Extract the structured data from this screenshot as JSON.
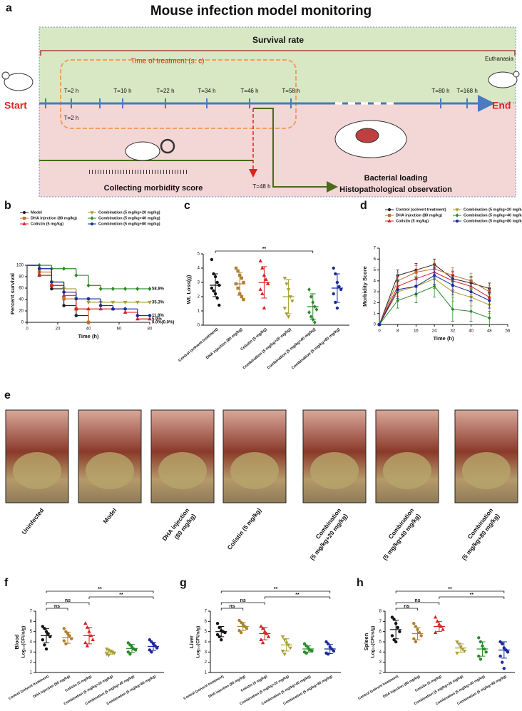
{
  "panel_labels": [
    "a",
    "b",
    "c",
    "d",
    "e",
    "f",
    "g",
    "h"
  ],
  "diagram": {
    "title": "Mouse infection model monitoring",
    "survival_rate": "Survival rate",
    "treatment": "Time of treatment (s. c)",
    "timepoints": [
      "T=2 h",
      "T=10 h",
      "T=22 h",
      "T=34 h",
      "T=46 h",
      "T=58 h",
      "T=80 h",
      "T=168 h"
    ],
    "timepoint_lower": "T=2 h",
    "sampling": "T=48 h",
    "start": "Start",
    "end": "End",
    "euthanasia": "Euthanasia",
    "morbidity": "Collecting morbidity score",
    "loading": "Bacterial loading",
    "histology": "Histopathological observation"
  },
  "photos": {
    "labels": [
      [
        "Uninfected"
      ],
      [
        "Model"
      ],
      [
        "DHA injection",
        "(80 mg/kg)"
      ],
      [
        "Colistin (5 mg/kg)"
      ],
      [
        "Combination",
        "(5 mg/kg+20 mg/kg)"
      ],
      [
        "Combination",
        "(5 mg/kg+40 mg/kg)"
      ],
      [
        "Combination",
        "(5 mg/kg+80 mg/kg)"
      ]
    ]
  },
  "chart_data": [
    {
      "type": "line",
      "step": true,
      "xlabel": "Time (h)",
      "ylabel": "Percent survival",
      "x": [
        0,
        8,
        16,
        24,
        32,
        40,
        48,
        56,
        64,
        72,
        80
      ],
      "xlim": [
        0,
        80
      ],
      "xticks": [
        0,
        20,
        40,
        60,
        80
      ],
      "ylim": [
        0,
        100
      ],
      "yticks": [
        0,
        20,
        40,
        60,
        80,
        100
      ],
      "series": [
        {
          "name": "Model",
          "color": "#222222",
          "marker": "circle",
          "values": [
            100,
            82.4,
            58.8,
            29.4,
            11.8,
            0,
            null,
            null,
            null,
            null,
            null
          ]
        },
        {
          "name": "DHA injection (80 mg/kg)",
          "color": "#c0702a",
          "marker": "square",
          "values": [
            100,
            88.2,
            64.7,
            41.2,
            23.5,
            0,
            null,
            null,
            null,
            null,
            null
          ]
        },
        {
          "name": "Colistin (5 mg/kg)",
          "color": "#d42020",
          "marker": "triangle",
          "values": [
            100,
            82.4,
            64.7,
            47.1,
            23.5,
            23.5,
            23.5,
            23.5,
            17.6,
            5.9,
            5.9
          ]
        },
        {
          "name": "Combination (5 mg/kg+20 mg/kg)",
          "color": "#a6a030",
          "marker": "triangle-down",
          "values": [
            100,
            94.1,
            70.6,
            58.8,
            41.2,
            35.3,
            35.3,
            35.3,
            35.3,
            35.3,
            35.3
          ]
        },
        {
          "name": "Combination (5 mg/kg+40 mg/kg)",
          "color": "#2a8a2a",
          "marker": "diamond",
          "values": [
            100,
            100,
            94.1,
            94.1,
            82.4,
            64.7,
            58.8,
            58.8,
            58.8,
            58.8,
            58.8
          ]
        },
        {
          "name": "Combination (5 mg/kg+80 mg/kg)",
          "color": "#1a2a9a",
          "marker": "circle",
          "values": [
            100,
            94.1,
            70.6,
            52.9,
            41.2,
            41.2,
            29.4,
            23.5,
            23.5,
            11.8,
            11.8
          ]
        }
      ],
      "annotations": [
        {
          "text": "58.8%",
          "value": 58.8
        },
        {
          "text": "35.3%",
          "value": 35.3
        },
        {
          "text": "11.8%",
          "value": 11.8
        },
        {
          "text": "5.9%",
          "value": 5.9
        },
        {
          "text": "0.0%(0.0%)",
          "value": 0
        }
      ]
    },
    {
      "type": "dotplot",
      "ylabel": "Wt. Loss(g)",
      "ylim": [
        0,
        5
      ],
      "yticks": [
        0,
        1,
        2,
        3,
        4,
        5
      ],
      "categories": [
        "Control (solvent treatment)",
        "DHA injection (80 mg/kg)",
        "Colistin (5 mg/kg)",
        "Combination (5 mg/kg+20 mg/kg)",
        "Combination (5 mg/kg+40 mg/kg)",
        "Combination (5 mg/kg+80 mg/kg)"
      ],
      "colors": [
        "#111111",
        "#b08030",
        "#d42020",
        "#a6a030",
        "#2a8a2a",
        "#1a2a9a"
      ],
      "markers": [
        "circle",
        "square",
        "triangle",
        "triangle-down",
        "diamond",
        "circle"
      ],
      "points": [
        [
          4.6,
          3.6,
          3.4,
          3.0,
          2.8,
          2.6,
          2.4,
          2.2,
          1.9,
          1.4
        ],
        [
          4.0,
          3.8,
          3.5,
          3.3,
          3.0,
          2.9,
          2.6,
          2.2,
          2.0,
          1.8
        ],
        [
          4.5,
          4.0,
          3.5,
          3.2,
          2.9,
          2.5,
          2.2,
          1.2
        ],
        [
          3.3,
          2.9,
          2.5,
          2.0,
          1.7,
          1.2,
          0.8,
          0.6
        ],
        [
          2.5,
          2.0,
          1.6,
          1.3,
          1.1,
          0.9,
          0.6,
          0.4,
          0.2
        ],
        [
          4.0,
          3.6,
          3.0,
          2.7,
          2.5,
          2.2,
          1.6,
          1.2
        ]
      ],
      "means": [
        2.8,
        2.9,
        3.0,
        2.0,
        1.3,
        2.6
      ],
      "sd": [
        0.8,
        0.8,
        1.1,
        1.2,
        0.9,
        1.0
      ],
      "brackets": [
        {
          "label": "**",
          "between": [
            0,
            4
          ]
        }
      ]
    },
    {
      "type": "line",
      "xlabel": "Time (h)",
      "ylabel": "Morbidity Score",
      "x": [
        0,
        8,
        16,
        24,
        32,
        40,
        48
      ],
      "xlim": [
        0,
        56
      ],
      "xticks": [
        0,
        8,
        16,
        24,
        32,
        40,
        48,
        56
      ],
      "ylim": [
        0,
        7
      ],
      "yticks": [
        0,
        1,
        2,
        3,
        4,
        5,
        6,
        7
      ],
      "series": [
        {
          "name": "Control (solvent treatment)",
          "color": "#222222",
          "marker": "circle",
          "values": [
            0,
            4.5,
            5.0,
            5.5,
            4.2,
            3.8,
            3.3
          ],
          "errors": [
            0,
            0.5,
            0.6,
            0.5,
            0.7,
            0.6,
            0.5
          ]
        },
        {
          "name": "DHA injection (80 mg/kg)",
          "color": "#c0702a",
          "marker": "square",
          "values": [
            0,
            4.0,
            4.8,
            5.1,
            4.5,
            4.0,
            3.0
          ],
          "errors": [
            0,
            0.8,
            0.6,
            0.6,
            0.7,
            0.7,
            0.6
          ]
        },
        {
          "name": "Colistin (5 mg/kg)",
          "color": "#d42020",
          "marker": "triangle",
          "values": [
            0,
            3.5,
            4.2,
            4.8,
            4.0,
            3.5,
            2.5
          ],
          "errors": [
            0,
            0.9,
            0.8,
            0.7,
            0.8,
            0.8,
            0.7
          ]
        },
        {
          "name": "Combination (5 mg/kg+20 mg/kg)",
          "color": "#a6a030",
          "marker": "triangle-down",
          "values": [
            0,
            3.0,
            3.5,
            4.2,
            3.0,
            2.5,
            1.8
          ],
          "errors": [
            0,
            0.9,
            0.9,
            0.9,
            0.9,
            0.8,
            0.8
          ]
        },
        {
          "name": "Combination (5 mg/kg+40 mg/kg)",
          "color": "#2a8a2a",
          "marker": "diamond",
          "values": [
            0,
            2.2,
            2.8,
            3.5,
            1.4,
            1.2,
            0.6
          ],
          "errors": [
            0,
            0.7,
            0.8,
            1.0,
            1.1,
            0.9,
            0.6
          ]
        },
        {
          "name": "Combination (5 mg/kg+80 mg/kg)",
          "color": "#1a2a9a",
          "marker": "circle",
          "values": [
            0,
            3.2,
            3.5,
            4.5,
            3.6,
            3.0,
            2.2
          ],
          "errors": [
            0,
            0.8,
            0.8,
            0.8,
            0.9,
            0.8,
            0.7
          ]
        }
      ]
    },
    {
      "type": "dotplot",
      "ylabel": "Blood",
      "ylabel2": "Log₁₀(CFUs/g)",
      "ylim": [
        1,
        7
      ],
      "yticks": [
        1,
        2,
        3,
        4,
        5,
        6,
        7
      ],
      "categories": [
        "Control (solvent treatment)",
        "DHA injection (80 mg/kg)",
        "Colistin (5 mg/kg)",
        "Combination (5 mg/kg+20 mg/kg)",
        "Combination (5 mg/kg+40 mg/kg)",
        "Combination (5 mg/kg+80 mg/kg)"
      ],
      "colors": [
        "#111111",
        "#b08030",
        "#d42020",
        "#a6a030",
        "#2a8a2a",
        "#1a2a9a"
      ],
      "markers": [
        "circle",
        "circle",
        "triangle",
        "triangle-down",
        "circle",
        "circle"
      ],
      "points": [
        [
          5.5,
          5.3,
          5.0,
          4.8,
          4.5,
          4.2,
          3.7,
          3.3
        ],
        [
          5.3,
          5.0,
          4.8,
          4.6,
          4.3,
          4.1,
          3.8
        ],
        [
          5.8,
          5.4,
          5.0,
          4.6,
          4.2,
          3.9,
          3.6
        ],
        [
          3.3,
          3.2,
          3.1,
          3.0,
          2.9,
          2.8,
          2.7
        ],
        [
          3.9,
          3.7,
          3.5,
          3.3,
          3.2,
          3.0,
          2.8
        ],
        [
          4.2,
          4.0,
          3.8,
          3.6,
          3.4,
          3.2,
          3.0
        ]
      ],
      "means": [
        4.6,
        4.4,
        4.6,
        3.0,
        3.35,
        3.55
      ],
      "sd": [
        0.7,
        0.55,
        0.8,
        0.2,
        0.4,
        0.4
      ],
      "brackets": [
        {
          "label": "ns",
          "between": [
            0,
            1
          ]
        },
        {
          "label": "ns",
          "between": [
            0,
            2
          ]
        },
        {
          "label": "**",
          "between": [
            2,
            5
          ]
        },
        {
          "label": "**",
          "between": [
            0,
            5
          ]
        }
      ]
    },
    {
      "type": "dotplot",
      "ylabel": "Liver",
      "ylabel2": "Log₁₀(CFUs/g)",
      "ylim": [
        1,
        7
      ],
      "yticks": [
        1,
        2,
        3,
        4,
        5,
        6,
        7
      ],
      "categories": [
        "Control (solvent treatment)",
        "DHA injection (80 mg/kg)",
        "Colistin (5 mg/kg)",
        "Combination (5 mg/kg+20 mg/kg)",
        "Combination (5 mg/kg+40 mg/kg)",
        "Combination (5 mg/kg+80 mg/kg)"
      ],
      "colors": [
        "#111111",
        "#b08030",
        "#d42020",
        "#a6a030",
        "#2a8a2a",
        "#1a2a9a"
      ],
      "markers": [
        "circle",
        "circle",
        "triangle",
        "triangle-down",
        "circle",
        "circle"
      ],
      "points": [
        [
          5.8,
          5.4,
          5.1,
          5.0,
          4.9,
          4.7,
          4.5,
          4.2
        ],
        [
          6.1,
          5.9,
          5.7,
          5.5,
          5.3,
          5.1,
          4.9
        ],
        [
          5.5,
          5.3,
          5.0,
          4.8,
          4.5,
          4.2,
          3.9
        ],
        [
          4.5,
          4.2,
          3.9,
          3.7,
          3.4,
          3.1,
          2.8
        ],
        [
          3.8,
          3.6,
          3.4,
          3.2,
          3.1,
          3.0,
          2.9
        ],
        [
          4.0,
          3.8,
          3.5,
          3.3,
          3.1,
          2.9,
          2.8
        ]
      ],
      "means": [
        5.0,
        5.5,
        4.8,
        3.7,
        3.3,
        3.3
      ],
      "sd": [
        0.5,
        0.4,
        0.6,
        0.6,
        0.3,
        0.45
      ],
      "brackets": [
        {
          "label": "ns",
          "between": [
            0,
            1
          ]
        },
        {
          "label": "ns",
          "between": [
            0,
            2
          ]
        },
        {
          "label": "**",
          "between": [
            2,
            5
          ]
        },
        {
          "label": "**",
          "between": [
            0,
            5
          ]
        }
      ]
    },
    {
      "type": "dotplot",
      "ylabel": "Spleen",
      "ylabel2": "Log₁₀(CFUs/g)",
      "ylim": [
        2,
        8
      ],
      "yticks": [
        2,
        3,
        4,
        5,
        6,
        7,
        8
      ],
      "categories": [
        "Control (solvent treatment)",
        "DHA injection (80 mg/kg)",
        "Colistin (5 mg/kg)",
        "Combination (5 mg/kg+20 mg/kg)",
        "Combination (5 mg/kg+40 mg/kg)",
        "Combination (5 mg/kg+80 mg/kg)"
      ],
      "colors": [
        "#111111",
        "#b08030",
        "#d42020",
        "#a6a030",
        "#2a8a2a",
        "#1a2a9a"
      ],
      "markers": [
        "circle",
        "circle",
        "triangle",
        "triangle-down",
        "circle",
        "circle"
      ],
      "points": [
        [
          7.4,
          7.2,
          6.8,
          6.4,
          6.0,
          5.6,
          5.2,
          5.0
        ],
        [
          6.8,
          6.5,
          6.2,
          5.9,
          5.6,
          5.3,
          5.0
        ],
        [
          7.4,
          7.0,
          6.7,
          6.5,
          6.2,
          5.9
        ],
        [
          5.0,
          4.8,
          4.5,
          4.3,
          4.1,
          3.9
        ],
        [
          5.4,
          5.0,
          4.6,
          4.3,
          4.0,
          3.6,
          3.3
        ],
        [
          5.0,
          4.8,
          4.4,
          4.2,
          4.0,
          3.6,
          3.0,
          2.4
        ]
      ],
      "means": [
        6.2,
        5.8,
        6.5,
        4.4,
        4.3,
        4.2
      ],
      "sd": [
        0.9,
        0.6,
        0.5,
        0.4,
        0.7,
        0.8
      ],
      "brackets": [
        {
          "label": "ns",
          "between": [
            0,
            1
          ]
        },
        {
          "label": "ns",
          "between": [
            0,
            2
          ]
        },
        {
          "label": "**",
          "between": [
            2,
            5
          ]
        },
        {
          "label": "**",
          "between": [
            0,
            5
          ]
        }
      ]
    }
  ]
}
